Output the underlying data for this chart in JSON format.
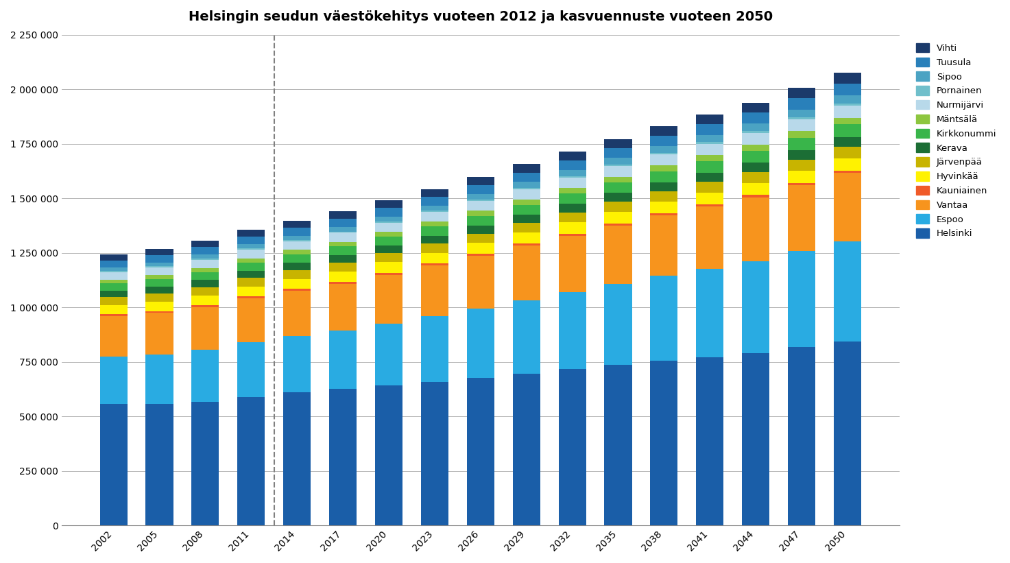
{
  "title": "Helsingin seudun väestökehitys vuoteen 2012 ja kasvuennuste vuoteen 2050",
  "years": [
    2002,
    2005,
    2008,
    2011,
    2014,
    2017,
    2020,
    2023,
    2026,
    2029,
    2032,
    2035,
    2038,
    2041,
    2044,
    2047,
    2050
  ],
  "municipalities": [
    "Helsinki",
    "Espoo",
    "Vantaa",
    "Kauniainen",
    "Hyvinkää",
    "Järvenpää",
    "Kerava",
    "Kirkkonummi",
    "Mäntsälä",
    "Nurmijärvi",
    "Pornainen",
    "Sipoo",
    "Tuusula",
    "Vihti"
  ],
  "colors": [
    "#1A5EA8",
    "#29ABE2",
    "#F7941D",
    "#F05A28",
    "#FFF200",
    "#C8B400",
    "#1C6E35",
    "#39B54A",
    "#8DC63F",
    "#B8D9EA",
    "#70BFCB",
    "#4BA3C3",
    "#2980BA",
    "#1B3A6B"
  ],
  "data": {
    "Helsinki": [
      559000,
      559000,
      568000,
      588000,
      612000,
      626000,
      643000,
      659000,
      676000,
      696000,
      717000,
      737000,
      757000,
      773000,
      790000,
      818000,
      844000
    ],
    "Espoo": [
      216800,
      226000,
      238000,
      252000,
      256000,
      267000,
      283000,
      300000,
      318000,
      335000,
      352000,
      370000,
      388000,
      405000,
      422000,
      440000,
      460000
    ],
    "Vantaa": [
      184000,
      190000,
      196000,
      202000,
      208000,
      216000,
      224000,
      233000,
      242000,
      252000,
      260000,
      268000,
      276000,
      284000,
      293000,
      302000,
      312000
    ],
    "Kauniainen": [
      8500,
      8600,
      8700,
      8800,
      8900,
      9000,
      9100,
      9200,
      9300,
      9500,
      9700,
      9900,
      10100,
      10300,
      10500,
      10700,
      10900
    ],
    "Hyvinkää": [
      43000,
      44000,
      45000,
      45500,
      46500,
      47200,
      48000,
      49000,
      50000,
      51000,
      52000,
      53000,
      54000,
      55000,
      56000,
      57000,
      58000
    ],
    "Järvenpää": [
      35500,
      36500,
      37800,
      38700,
      39500,
      40200,
      41000,
      42000,
      43000,
      44000,
      45000,
      46000,
      47000,
      48000,
      49000,
      50000,
      51000
    ],
    "Kerava": [
      31000,
      32000,
      33000,
      34000,
      34500,
      35500,
      36500,
      37000,
      38000,
      39000,
      40000,
      41000,
      42000,
      43000,
      44000,
      45000,
      46000
    ],
    "Kirkkonummi": [
      32000,
      33500,
      35000,
      36500,
      37500,
      38500,
      40000,
      41500,
      43000,
      44500,
      46000,
      48000,
      50000,
      52000,
      54000,
      56000,
      58000
    ],
    "Mäntsälä": [
      17500,
      18500,
      19500,
      20200,
      20800,
      21500,
      22200,
      23000,
      23800,
      24600,
      25400,
      26200,
      27000,
      27800,
      28600,
      29400,
      30200
    ],
    "Nurmijärvi": [
      35000,
      36500,
      38000,
      39500,
      40500,
      41500,
      42500,
      43500,
      44500,
      46000,
      47500,
      49000,
      50500,
      52000,
      53500,
      55000,
      56500
    ],
    "Pornainen": [
      4500,
      4700,
      5000,
      5200,
      5400,
      5600,
      5800,
      6000,
      6300,
      6600,
      6900,
      7200,
      7500,
      7800,
      8100,
      8400,
      8700
    ],
    "Sipoo": [
      16000,
      17000,
      18000,
      19000,
      20000,
      21000,
      22500,
      24000,
      25500,
      27000,
      28500,
      30000,
      31500,
      33000,
      34500,
      36000,
      37500
    ],
    "Tuusula": [
      33000,
      34500,
      35500,
      36500,
      37500,
      38500,
      39500,
      40500,
      42000,
      43500,
      45000,
      46500,
      48000,
      49500,
      51000,
      52500,
      54000
    ],
    "Vihti": [
      26000,
      27500,
      29000,
      30500,
      31500,
      32500,
      33500,
      35000,
      36500,
      38000,
      39500,
      41000,
      42500,
      44000,
      45500,
      47000,
      48500
    ]
  },
  "ylim": [
    0,
    2250000
  ],
  "yticks": [
    0,
    250000,
    500000,
    750000,
    1000000,
    1250000,
    1500000,
    1750000,
    2000000,
    2250000
  ],
  "ytick_labels": [
    "0",
    "250 000",
    "500 000",
    "750 000",
    "1 000 000",
    "1 250 000",
    "1 500 000",
    "1 750 000",
    "2 000 000",
    "2 250 000"
  ],
  "title_fontsize": 14,
  "bar_width": 0.6
}
